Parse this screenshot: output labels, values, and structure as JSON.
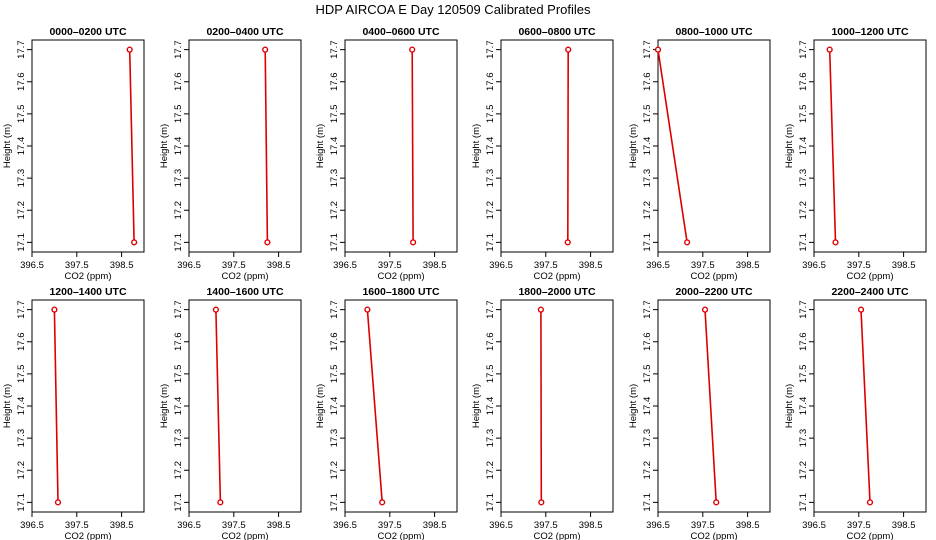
{
  "figure": {
    "title": "HDP AIRCOA E  Day 120509  Calibrated Profiles"
  },
  "colors": {
    "profile": "#dd0000",
    "axis": "#000000"
  },
  "chart_data": [
    {
      "type": "line",
      "title": "0000–0200 UTC",
      "xlabel": "CO2 (ppm)",
      "ylabel": "Height (m)",
      "xlim": [
        396.5,
        399.0
      ],
      "ylim": [
        17.07,
        17.73
      ],
      "xticks": [
        "396.5",
        "397.5",
        "398.5"
      ],
      "yticks": [
        "17.1",
        "17.2",
        "17.3",
        "17.4",
        "17.5",
        "17.6",
        "17.7"
      ],
      "x": [
        398.68,
        398.78
      ],
      "y": [
        17.7,
        17.1
      ]
    },
    {
      "type": "line",
      "title": "0200–0400 UTC",
      "xlabel": "CO2 (ppm)",
      "ylabel": "Height (m)",
      "xlim": [
        396.5,
        399.0
      ],
      "ylim": [
        17.07,
        17.73
      ],
      "xticks": [
        "396.5",
        "397.5",
        "398.5"
      ],
      "yticks": [
        "17.1",
        "17.2",
        "17.3",
        "17.4",
        "17.5",
        "17.6",
        "17.7"
      ],
      "x": [
        398.2,
        398.25
      ],
      "y": [
        17.7,
        17.1
      ]
    },
    {
      "type": "line",
      "title": "0400–0600 UTC",
      "xlabel": "CO2 (ppm)",
      "ylabel": "Height (m)",
      "xlim": [
        396.5,
        399.0
      ],
      "ylim": [
        17.07,
        17.73
      ],
      "xticks": [
        "396.5",
        "397.5",
        "398.5"
      ],
      "yticks": [
        "17.1",
        "17.2",
        "17.3",
        "17.4",
        "17.5",
        "17.6",
        "17.7"
      ],
      "x": [
        398.0,
        398.02
      ],
      "y": [
        17.7,
        17.1
      ]
    },
    {
      "type": "line",
      "title": "0600–0800 UTC",
      "xlabel": "CO2 (ppm)",
      "ylabel": "Height (m)",
      "xlim": [
        396.5,
        399.0
      ],
      "ylim": [
        17.07,
        17.73
      ],
      "xticks": [
        "396.5",
        "397.5",
        "398.5"
      ],
      "yticks": [
        "17.1",
        "17.2",
        "17.3",
        "17.4",
        "17.5",
        "17.6",
        "17.7"
      ],
      "x": [
        398.0,
        397.99
      ],
      "y": [
        17.7,
        17.1
      ]
    },
    {
      "type": "line",
      "title": "0800–1000 UTC",
      "xlabel": "CO2 (ppm)",
      "ylabel": "Height (m)",
      "xlim": [
        396.5,
        399.0
      ],
      "ylim": [
        17.07,
        17.73
      ],
      "xticks": [
        "396.5",
        "397.5",
        "398.5"
      ],
      "yticks": [
        "17.1",
        "17.2",
        "17.3",
        "17.4",
        "17.5",
        "17.6",
        "17.7"
      ],
      "x": [
        396.5,
        397.15
      ],
      "y": [
        17.7,
        17.1
      ]
    },
    {
      "type": "line",
      "title": "1000–1200 UTC",
      "xlabel": "CO2 (ppm)",
      "ylabel": "Height (m)",
      "xlim": [
        396.5,
        399.0
      ],
      "ylim": [
        17.07,
        17.73
      ],
      "xticks": [
        "396.5",
        "397.5",
        "398.5"
      ],
      "yticks": [
        "17.1",
        "17.2",
        "17.3",
        "17.4",
        "17.5",
        "17.6",
        "17.7"
      ],
      "x": [
        396.85,
        396.98
      ],
      "y": [
        17.7,
        17.1
      ]
    },
    {
      "type": "line",
      "title": "1200–1400 UTC",
      "xlabel": "CO2 (ppm)",
      "ylabel": "Height (m)",
      "xlim": [
        396.5,
        399.0
      ],
      "ylim": [
        17.07,
        17.73
      ],
      "xticks": [
        "396.5",
        "397.5",
        "398.5"
      ],
      "yticks": [
        "17.1",
        "17.2",
        "17.3",
        "17.4",
        "17.5",
        "17.6",
        "17.7"
      ],
      "x": [
        397.0,
        397.08
      ],
      "y": [
        17.7,
        17.1
      ]
    },
    {
      "type": "line",
      "title": "1400–1600 UTC",
      "xlabel": "CO2 (ppm)",
      "ylabel": "Height (m)",
      "xlim": [
        396.5,
        399.0
      ],
      "ylim": [
        17.07,
        17.73
      ],
      "xticks": [
        "396.5",
        "397.5",
        "398.5"
      ],
      "yticks": [
        "17.1",
        "17.2",
        "17.3",
        "17.4",
        "17.5",
        "17.6",
        "17.7"
      ],
      "x": [
        397.1,
        397.2
      ],
      "y": [
        17.7,
        17.1
      ]
    },
    {
      "type": "line",
      "title": "1600–1800 UTC",
      "xlabel": "CO2 (ppm)",
      "ylabel": "Height (m)",
      "xlim": [
        396.5,
        399.0
      ],
      "ylim": [
        17.07,
        17.73
      ],
      "xticks": [
        "396.5",
        "397.5",
        "398.5"
      ],
      "yticks": [
        "17.1",
        "17.2",
        "17.3",
        "17.4",
        "17.5",
        "17.6",
        "17.7"
      ],
      "x": [
        397.0,
        397.33
      ],
      "y": [
        17.7,
        17.1
      ]
    },
    {
      "type": "line",
      "title": "1800–2000 UTC",
      "xlabel": "CO2 (ppm)",
      "ylabel": "Height (m)",
      "xlim": [
        396.5,
        399.0
      ],
      "ylim": [
        17.07,
        17.73
      ],
      "xticks": [
        "396.5",
        "397.5",
        "398.5"
      ],
      "yticks": [
        "17.1",
        "17.2",
        "17.3",
        "17.4",
        "17.5",
        "17.6",
        "17.7"
      ],
      "x": [
        397.39,
        397.4
      ],
      "y": [
        17.7,
        17.1
      ]
    },
    {
      "type": "line",
      "title": "2000–2200 UTC",
      "xlabel": "CO2 (ppm)",
      "ylabel": "Height (m)",
      "xlim": [
        396.5,
        399.0
      ],
      "ylim": [
        17.07,
        17.73
      ],
      "xticks": [
        "396.5",
        "397.5",
        "398.5"
      ],
      "yticks": [
        "17.1",
        "17.2",
        "17.3",
        "17.4",
        "17.5",
        "17.6",
        "17.7"
      ],
      "x": [
        397.55,
        397.8
      ],
      "y": [
        17.7,
        17.1
      ]
    },
    {
      "type": "line",
      "title": "2200–2400 UTC",
      "xlabel": "CO2 (ppm)",
      "ylabel": "Height (m)",
      "xlim": [
        396.5,
        399.0
      ],
      "ylim": [
        17.07,
        17.73
      ],
      "xticks": [
        "396.5",
        "397.5",
        "398.5"
      ],
      "yticks": [
        "17.1",
        "17.2",
        "17.3",
        "17.4",
        "17.5",
        "17.6",
        "17.7"
      ],
      "x": [
        397.55,
        397.75
      ],
      "y": [
        17.7,
        17.1
      ]
    }
  ]
}
